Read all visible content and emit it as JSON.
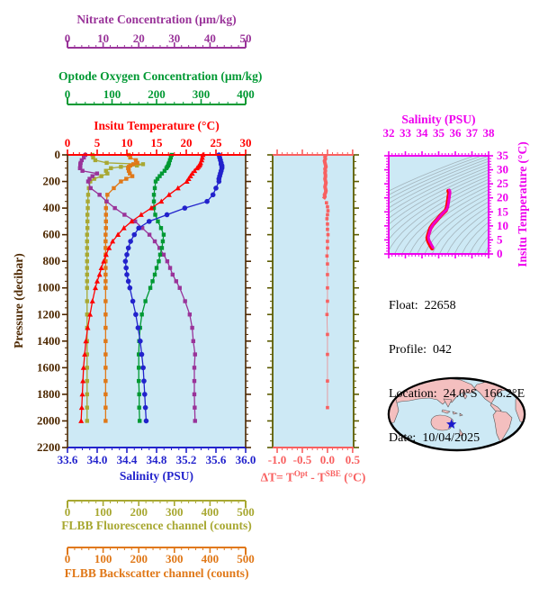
{
  "info": {
    "lines": [
      "Float:  22658",
      "Profile:  042",
      "Location:  24.0°S  166.2°E",
      "Date:  10/04/2025"
    ]
  },
  "chart_data": {
    "type": "line",
    "pressure_profile": {
      "ylabel": "Pressure (decibar)",
      "ylim": [
        0,
        2200
      ],
      "y_major_ticks": [
        0,
        200,
        400,
        600,
        800,
        1000,
        1200,
        1400,
        1600,
        1800,
        2000,
        2200
      ],
      "y_tick_labels": [
        "0",
        "200",
        "400",
        "600",
        "800",
        "1000",
        "1200",
        "1400",
        "1600",
        "1800",
        "2000",
        "2200"
      ],
      "y_minor_step": 50,
      "axis_color": "#4d2800",
      "bg_color": "#cde9f5",
      "pressures": [
        0,
        20,
        40,
        60,
        70,
        80,
        90,
        100,
        120,
        140,
        160,
        180,
        200,
        250,
        300,
        350,
        400,
        450,
        500,
        550,
        600,
        650,
        700,
        750,
        800,
        850,
        900,
        950,
        1000,
        1100,
        1200,
        1300,
        1400,
        1500,
        1600,
        1700,
        1800,
        1900,
        2000
      ],
      "series": [
        {
          "name": "flbb_fluorescence",
          "marker": "square",
          "color": "#a8a832",
          "axis": {
            "title": "FLBB Fluorescence channel (counts)",
            "lim": [
              0,
              500
            ],
            "ticks": [
              0,
              100,
              200,
              300,
              400,
              500
            ],
            "tick_labels": [
              "0",
              "100",
              "200",
              "300",
              "400",
              "500"
            ],
            "minor": 20,
            "kind": "detached-bottom",
            "line_y": 556,
            "num_y": 573,
            "color": "#a8a832"
          },
          "values": [
            70,
            72,
            78,
            110,
            212,
            195,
            150,
            122,
            108,
            112,
            95,
            75,
            64,
            60,
            58,
            57,
            57,
            56,
            56,
            56,
            55,
            55,
            55,
            55,
            55,
            55,
            55,
            55,
            55,
            55,
            55,
            55,
            55,
            55,
            55,
            55,
            55,
            55,
            55
          ]
        },
        {
          "name": "flbb_backscatter",
          "marker": "square",
          "color": "#e07818",
          "axis": {
            "title": "FLBB Backscatter channel (counts)",
            "lim": [
              0,
              500
            ],
            "ticks": [
              0,
              100,
              200,
              300,
              400,
              500
            ],
            "tick_labels": [
              "0",
              "100",
              "200",
              "300",
              "400",
              "500"
            ],
            "minor": 20,
            "kind": "detached-bottom",
            "line_y": 608,
            "num_y": 625,
            "color": "#e07818"
          },
          "values": [
            172,
            176,
            192,
            196,
            185,
            176,
            172,
            170,
            172,
            175,
            182,
            165,
            150,
            130,
            112,
            109,
            108,
            108,
            108,
            108,
            107,
            107,
            107,
            107,
            107,
            107,
            107,
            107,
            107,
            107,
            107,
            107,
            107,
            107,
            107,
            107,
            107,
            107,
            107
          ]
        },
        {
          "name": "nitrate",
          "marker": "square",
          "color": "#993399",
          "axis": {
            "title": "Nitrate Concentration (µm/kg)",
            "lim": [
              0,
              50
            ],
            "ticks": [
              0,
              10,
              20,
              30,
              40,
              50
            ],
            "tick_labels": [
              "0",
              "10",
              "20",
              "30",
              "40",
              "50"
            ],
            "minor": 2,
            "kind": "detached-top",
            "line_y": 53,
            "num_y": 47,
            "color": "#993399"
          },
          "values": [
            5.0,
            4.6,
            4.0,
            3.7,
            3.6,
            3.6,
            3.6,
            3.5,
            4.2,
            8.3,
            7.0,
            6.2,
            5.8,
            6.5,
            9.0,
            11.0,
            13.3,
            16.0,
            19.0,
            21.0,
            23.0,
            24.5,
            25.8,
            27.0,
            28.0,
            28.8,
            29.5,
            30.5,
            31.5,
            33.0,
            34.3,
            35.0,
            35.3,
            35.8,
            35.6,
            35.6,
            35.6,
            35.7,
            35.8
          ]
        },
        {
          "name": "optode_oxygen",
          "marker": "square",
          "color": "#009933",
          "axis": {
            "title": "Optode Oxygen Concentration (µm/kg)",
            "lim": [
              0,
              400
            ],
            "ticks": [
              0,
              100,
              200,
              300,
              400
            ],
            "tick_labels": [
              "0",
              "100",
              "200",
              "300",
              "400"
            ],
            "minor": 20,
            "kind": "detached-top",
            "line_y": 116,
            "num_y": 109,
            "color": "#009933"
          },
          "values": [
            234,
            232,
            230,
            228,
            227,
            226,
            224,
            222,
            218,
            212,
            207,
            202,
            198,
            196,
            194,
            194,
            194,
            197,
            203,
            210,
            216,
            214,
            212,
            208,
            205,
            200,
            196,
            191,
            186,
            175,
            167,
            163,
            161,
            160,
            160,
            160,
            161,
            161,
            162
          ]
        },
        {
          "name": "salinity",
          "marker": "circle",
          "color": "#2222cc",
          "axis": {
            "title": "Salinity (PSU)",
            "lim": [
              33.6,
              36.0
            ],
            "ticks": [
              33.6,
              34.0,
              34.4,
              34.8,
              35.2,
              35.6,
              36.0
            ],
            "tick_labels": [
              "33.6",
              "34.0",
              "34.4",
              "34.8",
              "35.2",
              "35.6",
              "36.0"
            ],
            "minor": 0.1,
            "kind": "box-bottom",
            "num_y": 515,
            "color": "#2222cc"
          },
          "values": [
            35.64,
            35.65,
            35.66,
            35.67,
            35.67,
            35.68,
            35.68,
            35.68,
            35.67,
            35.66,
            35.65,
            35.64,
            35.64,
            35.6,
            35.56,
            35.48,
            35.18,
            34.94,
            34.7,
            34.56,
            34.5,
            34.45,
            34.42,
            34.4,
            34.38,
            34.39,
            34.4,
            34.42,
            34.44,
            34.48,
            34.52,
            34.55,
            34.58,
            34.6,
            34.62,
            34.63,
            34.64,
            34.65,
            34.66
          ]
        },
        {
          "name": "insitu_temperature",
          "marker": "triangle",
          "color": "#ff0000",
          "axis": {
            "title": "Insitu Temperature (°C)",
            "lim": [
              0,
              30
            ],
            "ticks": [
              0,
              5,
              10,
              15,
              20,
              25,
              30
            ],
            "tick_labels": [
              "0",
              "5",
              "10",
              "15",
              "20",
              "25",
              "30"
            ],
            "minor": 1,
            "kind": "box-top",
            "num_y": 163,
            "color": "#ff0000"
          },
          "values": [
            22.8,
            22.7,
            22.6,
            22.4,
            22.3,
            22.2,
            22.0,
            21.8,
            21.4,
            21.0,
            20.7,
            20.4,
            20.1,
            18.6,
            17.1,
            15.8,
            14.1,
            12.4,
            10.8,
            9.5,
            8.5,
            7.6,
            7.0,
            6.5,
            6.1,
            5.7,
            5.4,
            5.0,
            4.7,
            4.2,
            3.8,
            3.4,
            3.1,
            2.9,
            2.7,
            2.6,
            2.5,
            2.4,
            2.3
          ]
        }
      ]
    },
    "delta_t": {
      "xlim": [
        -1.09,
        0.52
      ],
      "xticks": [
        -1.0,
        -0.5,
        0.0,
        0.5
      ],
      "xtick_labels": [
        "-1.0",
        "-0.5",
        "0.0",
        "0.5"
      ],
      "x_minor_step": 0.1,
      "axis_color": "#f86060",
      "side_color": "#5c5c00",
      "bg_color": "#cde9f5",
      "label_parts": {
        "prefix": "ΔT= T",
        "sup1": "Opt",
        "mid": " - T",
        "sup2": "SBE",
        "suffix": " (°C)"
      },
      "line": {
        "pressures": [
          0,
          15,
          30,
          45,
          60,
          75,
          90,
          105,
          120,
          135,
          150,
          165,
          180,
          195,
          210,
          225,
          240,
          255,
          270,
          285,
          300,
          315,
          330
        ],
        "values": [
          -0.03,
          -0.05,
          -0.04,
          -0.06,
          -0.05,
          -0.04,
          -0.03,
          -0.05,
          -0.04,
          -0.05,
          -0.04,
          -0.04,
          -0.05,
          -0.04,
          -0.03,
          -0.04,
          -0.05,
          -0.04,
          -0.03,
          -0.04,
          -0.06,
          -0.05,
          -0.08
        ]
      },
      "dots": {
        "pressures": [
          360,
          390,
          420,
          450,
          480,
          520,
          560,
          600,
          650,
          700,
          760,
          820,
          900,
          1000,
          1100,
          1200,
          1350,
          1500,
          1700,
          1900
        ],
        "values": [
          -0.02,
          0.0,
          0.01,
          0.0,
          -0.01,
          0.0,
          0.0,
          0.01,
          0.0,
          0.0,
          -0.01,
          0.0,
          0.0,
          0.0,
          0.0,
          -0.01,
          0.0,
          0.0,
          0.0,
          0.0
        ]
      }
    },
    "ts_diagram": {
      "xlabel": "Salinity (PSU)",
      "ylabel": "Insitu Temperature (°C)",
      "xlim": [
        32,
        38
      ],
      "ylim": [
        0,
        35
      ],
      "xticks": [
        32,
        33,
        34,
        35,
        36,
        37,
        38
      ],
      "xtick_labels": [
        "32",
        "33",
        "34",
        "35",
        "36",
        "37",
        "38"
      ],
      "yticks": [
        0,
        5,
        10,
        15,
        20,
        25,
        30,
        35
      ],
      "ytick_labels": [
        "0",
        "5",
        "10",
        "15",
        "20",
        "25",
        "30",
        "35"
      ],
      "x_minor_step": 0.2,
      "y_minor_step": 1,
      "frame_color": "#ee00ee",
      "bg_color": "#cde9f5",
      "contour_color": "#a4b4bc",
      "curve_color": "#ee00cc",
      "curve_under_color": "#ff0000"
    }
  },
  "map": {
    "marker": {
      "lat": -24.0,
      "lon": 166.2
    },
    "marker_color": "#1a1acc",
    "land_color": "#f4bfbf",
    "ocean_color": "#cde9f5",
    "outline_color": "#000000"
  }
}
